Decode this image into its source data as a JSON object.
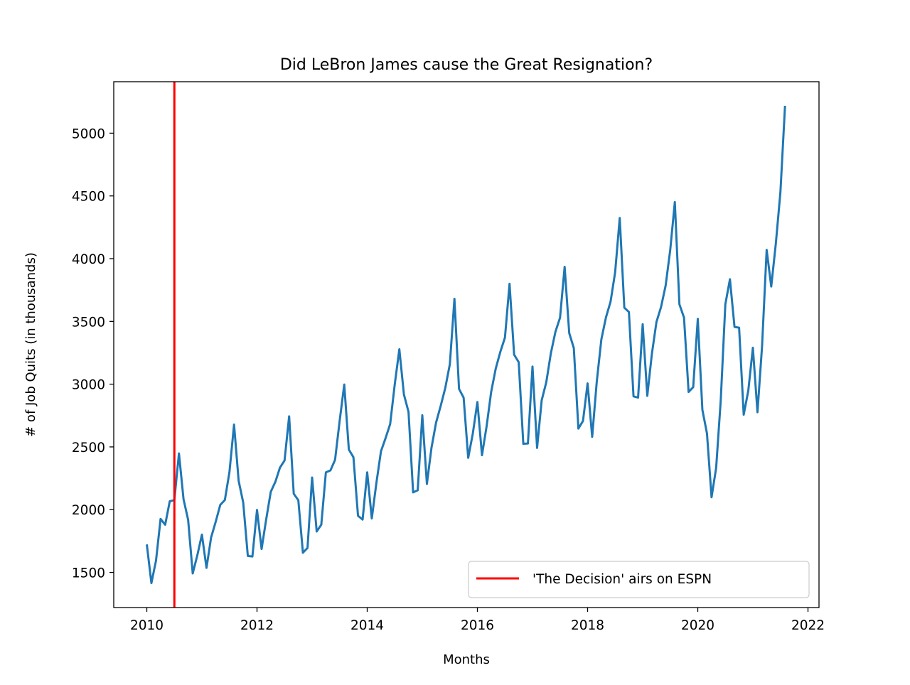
{
  "chart_data": {
    "type": "line",
    "title": "Did LeBron James cause the Great Resignation?",
    "xlabel": "Months",
    "ylabel": "# of Job Quits (in thousands)",
    "xlim": [
      2009.4,
      2022.2
    ],
    "ylim": [
      1220,
      5410
    ],
    "x_ticks": [
      2010,
      2012,
      2014,
      2016,
      2018,
      2020,
      2022
    ],
    "y_ticks": [
      1500,
      2000,
      2500,
      3000,
      3500,
      4000,
      4500,
      5000
    ],
    "grid": false,
    "legend_position": "lower-right",
    "series": [
      {
        "color": "#1f77b4",
        "x": [
          2010.0,
          2010.0833,
          2010.1667,
          2010.25,
          2010.3333,
          2010.4167,
          2010.5,
          2010.5833,
          2010.6667,
          2010.75,
          2010.8333,
          2010.9167,
          2011.0,
          2011.0833,
          2011.1667,
          2011.25,
          2011.3333,
          2011.4167,
          2011.5,
          2011.5833,
          2011.6667,
          2011.75,
          2011.8333,
          2011.9167,
          2012.0,
          2012.0833,
          2012.1667,
          2012.25,
          2012.3333,
          2012.4167,
          2012.5,
          2012.5833,
          2012.6667,
          2012.75,
          2012.8333,
          2012.9167,
          2013.0,
          2013.0833,
          2013.1667,
          2013.25,
          2013.3333,
          2013.4167,
          2013.5,
          2013.5833,
          2013.6667,
          2013.75,
          2013.8333,
          2013.9167,
          2014.0,
          2014.0833,
          2014.1667,
          2014.25,
          2014.3333,
          2014.4167,
          2014.5,
          2014.5833,
          2014.6667,
          2014.75,
          2014.8333,
          2014.9167,
          2015.0,
          2015.0833,
          2015.1667,
          2015.25,
          2015.3333,
          2015.4167,
          2015.5,
          2015.5833,
          2015.6667,
          2015.75,
          2015.8333,
          2015.9167,
          2016.0,
          2016.0833,
          2016.1667,
          2016.25,
          2016.3333,
          2016.4167,
          2016.5,
          2016.5833,
          2016.6667,
          2016.75,
          2016.8333,
          2016.9167,
          2017.0,
          2017.0833,
          2017.1667,
          2017.25,
          2017.3333,
          2017.4167,
          2017.5,
          2017.5833,
          2017.6667,
          2017.75,
          2017.8333,
          2017.9167,
          2018.0,
          2018.0833,
          2018.1667,
          2018.25,
          2018.3333,
          2018.4167,
          2018.5,
          2018.5833,
          2018.6667,
          2018.75,
          2018.8333,
          2018.9167,
          2019.0,
          2019.0833,
          2019.1667,
          2019.25,
          2019.3333,
          2019.4167,
          2019.5,
          2019.5833,
          2019.6667,
          2019.75,
          2019.8333,
          2019.9167,
          2020.0,
          2020.0833,
          2020.1667,
          2020.25,
          2020.3333,
          2020.4167,
          2020.5,
          2020.5833,
          2020.6667,
          2020.75,
          2020.8333,
          2020.9167,
          2021.0,
          2021.0833,
          2021.1667,
          2021.25,
          2021.3333,
          2021.4167,
          2021.5,
          2021.5833
        ],
        "values": [
          1723,
          1415,
          1593,
          1926,
          1880,
          2067,
          2077,
          2448,
          2083,
          1919,
          1492,
          1636,
          1801,
          1536,
          1778,
          1903,
          2038,
          2077,
          2300,
          2678,
          2230,
          2056,
          1631,
          1627,
          1998,
          1687,
          1923,
          2142,
          2222,
          2335,
          2392,
          2744,
          2127,
          2075,
          1657,
          1695,
          2256,
          1826,
          1880,
          2297,
          2313,
          2397,
          2707,
          2997,
          2479,
          2418,
          1951,
          1921,
          2297,
          1930,
          2213,
          2465,
          2570,
          2682,
          2998,
          3278,
          2917,
          2779,
          2138,
          2154,
          2752,
          2205,
          2493,
          2694,
          2826,
          2969,
          3159,
          3680,
          2962,
          2893,
          2413,
          2606,
          2858,
          2434,
          2663,
          2938,
          3125,
          3258,
          3371,
          3800,
          3235,
          3175,
          2525,
          2527,
          3140,
          2492,
          2871,
          3015,
          3246,
          3418,
          3530,
          3935,
          3407,
          3288,
          2646,
          2707,
          3006,
          2580,
          3021,
          3357,
          3532,
          3657,
          3891,
          4324,
          3609,
          3575,
          2903,
          2893,
          3478,
          2907,
          3241,
          3496,
          3615,
          3786,
          4070,
          4451,
          3636,
          3531,
          2938,
          2976,
          3520,
          2796,
          2607,
          2099,
          2333,
          2871,
          3636,
          3836,
          3456,
          3450,
          2757,
          2948,
          3290,
          2776,
          3304,
          4070,
          3778,
          4121,
          4532,
          5218
        ]
      }
    ],
    "vertical_line": {
      "x": 2010.5,
      "color": "#ff0000"
    },
    "legend": [
      {
        "label": "'The Decision' airs on ESPN",
        "color": "#ff0000"
      }
    ]
  }
}
